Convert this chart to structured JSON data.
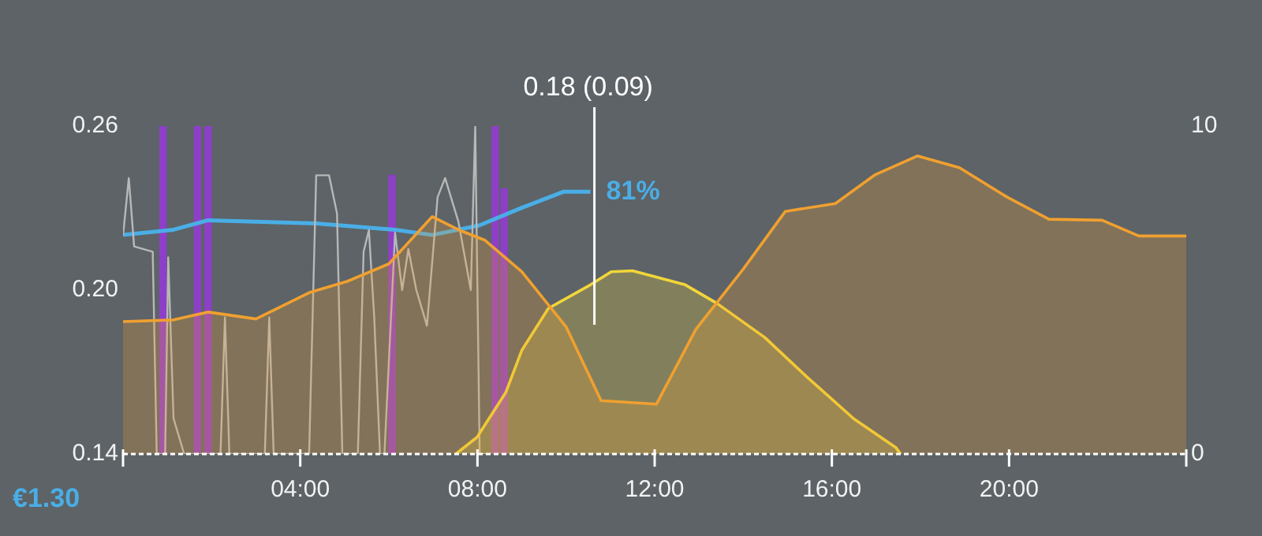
{
  "chart_data": {
    "type": "line",
    "xlim": [
      0,
      24
    ],
    "xticks": [
      {
        "value": 0,
        "label": null
      },
      {
        "value": 4,
        "label": "04:00"
      },
      {
        "value": 8,
        "label": "08:00"
      },
      {
        "value": 12,
        "label": "12:00"
      },
      {
        "value": 16,
        "label": "16:00"
      },
      {
        "value": 20,
        "label": "20:00"
      },
      {
        "value": 24,
        "label": null
      }
    ],
    "ylim": [
      0.14,
      0.26
    ],
    "yticks": [
      0.14,
      {
        "value": 0.2,
        "label": "0.20"
      },
      0.26
    ],
    "y2lim": [
      0,
      10
    ],
    "y2ticks": [
      0,
      10
    ],
    "grid": false,
    "legend": false,
    "marker": "none",
    "series": [
      {
        "type": "area",
        "axis": "y2",
        "color": "#f0a030",
        "x": [
          0,
          1.14,
          1.92,
          3.0,
          4.2,
          5.07,
          6.0,
          6.98,
          7.57,
          8.17,
          9.0,
          10.0,
          10.79,
          12.04,
          12.93,
          14.0,
          14.95,
          16.08,
          16.98,
          17.93,
          18.88,
          19.95,
          20.9,
          22.1,
          22.93,
          24
        ],
        "values": [
          4.04,
          4.09,
          4.33,
          4.12,
          4.92,
          5.27,
          5.8,
          7.24,
          6.84,
          6.52,
          5.56,
          3.88,
          1.63,
          1.52,
          3.8,
          5.64,
          7.4,
          7.64,
          8.52,
          9.09,
          8.73,
          7.84,
          7.16,
          7.13,
          6.65,
          6.65
        ]
      },
      {
        "type": "area",
        "axis": "y2",
        "color": "#f2d63a",
        "x": [
          7.51,
          7.99,
          8.64,
          9.0,
          9.6,
          10.55,
          11.02,
          11.5,
          12.69,
          13.4,
          14.48,
          15.43,
          16.5,
          17.45,
          17.55
        ],
        "values": [
          0,
          0.51,
          1.88,
          3.16,
          4.44,
          5.16,
          5.56,
          5.59,
          5.16,
          4.6,
          3.56,
          2.36,
          1.07,
          0.19,
          0
        ]
      },
      {
        "type": "bar",
        "axis": "y",
        "color": "#8e3fc8",
        "x": [
          0.9,
          1.68,
          1.92,
          6.07,
          8.4,
          8.6
        ],
        "values": [
          0.26,
          0.26,
          0.26,
          0.242,
          0.26,
          0.237
        ]
      },
      {
        "axis": "y",
        "color": "#b8b8b8",
        "x": [
          0,
          0.13,
          0.25,
          0.67,
          0.76,
          0.95,
          1.02,
          1.14,
          1.38,
          2.2,
          2.3,
          2.4,
          3.2,
          3.3,
          3.4,
          4.2,
          4.36,
          4.65,
          4.83,
          4.95,
          5.3,
          5.43,
          5.55,
          5.67,
          5.8,
          5.9,
          6.14,
          6.3,
          6.44,
          6.62,
          6.86,
          7.1,
          7.27,
          7.57,
          7.85,
          7.95,
          8.05,
          8.2
        ],
        "values": [
          0.22,
          0.241,
          0.216,
          0.214,
          0.14,
          0.14,
          0.212,
          0.153,
          0.14,
          0.14,
          0.19,
          0.14,
          0.14,
          0.19,
          0.14,
          0.14,
          0.242,
          0.242,
          0.228,
          0.14,
          0.14,
          0.214,
          0.222,
          0.19,
          0.14,
          0.14,
          0.221,
          0.2,
          0.215,
          0.2,
          0.187,
          0.234,
          0.241,
          0.225,
          0.2,
          0.26,
          0.14,
          0.14
        ]
      },
      {
        "axis": "y2",
        "color": "#4aaee6",
        "x": [
          0,
          1.14,
          1.92,
          4.36,
          6.14,
          6.98,
          8.04,
          9.0,
          9.95,
          10.55
        ],
        "values": [
          6.68,
          6.84,
          7.13,
          7.03,
          6.84,
          6.68,
          6.97,
          7.51,
          8.0,
          8.0
        ]
      }
    ],
    "ref_lines": [
      {
        "axis": "x",
        "value": 10.64,
        "color": "#ffffff"
      }
    ],
    "annotations": [
      "€1.30",
      "0.18 (0.09)",
      "81%"
    ]
  }
}
